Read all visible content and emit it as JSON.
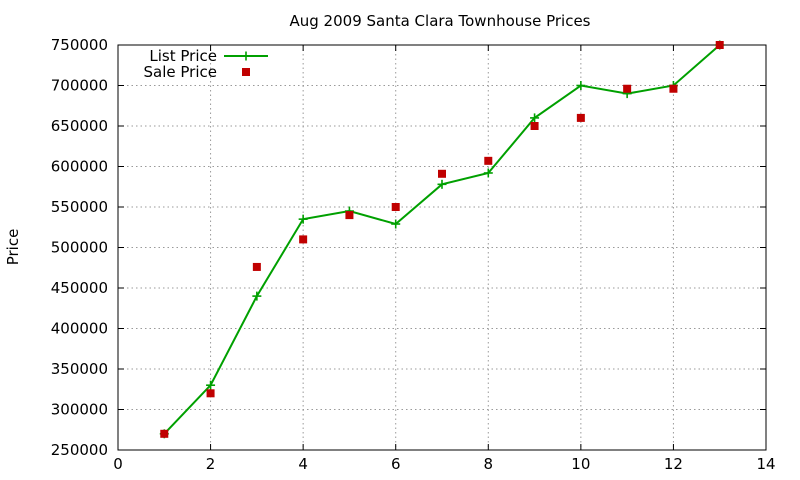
{
  "chart_data": {
    "type": "line",
    "title": "Aug 2009 Santa Clara Townhouse Prices",
    "xlabel": "",
    "ylabel": "Price",
    "xlim": [
      0,
      14
    ],
    "ylim": [
      250000,
      750000
    ],
    "xticks": [
      0,
      2,
      4,
      6,
      8,
      10,
      12,
      14
    ],
    "yticks": [
      250000,
      300000,
      350000,
      400000,
      450000,
      500000,
      550000,
      600000,
      650000,
      700000,
      750000
    ],
    "grid": true,
    "legend_position": "top-left",
    "series": [
      {
        "name": "List Price",
        "style": "line-plus",
        "color": "#00a000",
        "x": [
          1,
          2,
          3,
          4,
          5,
          6,
          7,
          8,
          9,
          10,
          11,
          12,
          13
        ],
        "y": [
          270000,
          330000,
          440000,
          535000,
          545000,
          529000,
          578000,
          592000,
          660000,
          700000,
          690000,
          700000,
          750000
        ]
      },
      {
        "name": "Sale Price",
        "style": "square-points",
        "color": "#c00000",
        "x": [
          1,
          2,
          3,
          4,
          5,
          6,
          7,
          8,
          9,
          10,
          11,
          12,
          13
        ],
        "y": [
          270000,
          320000,
          476000,
          510000,
          540000,
          550000,
          591000,
          607000,
          650000,
          660000,
          696000,
          696000,
          750000
        ]
      }
    ]
  }
}
